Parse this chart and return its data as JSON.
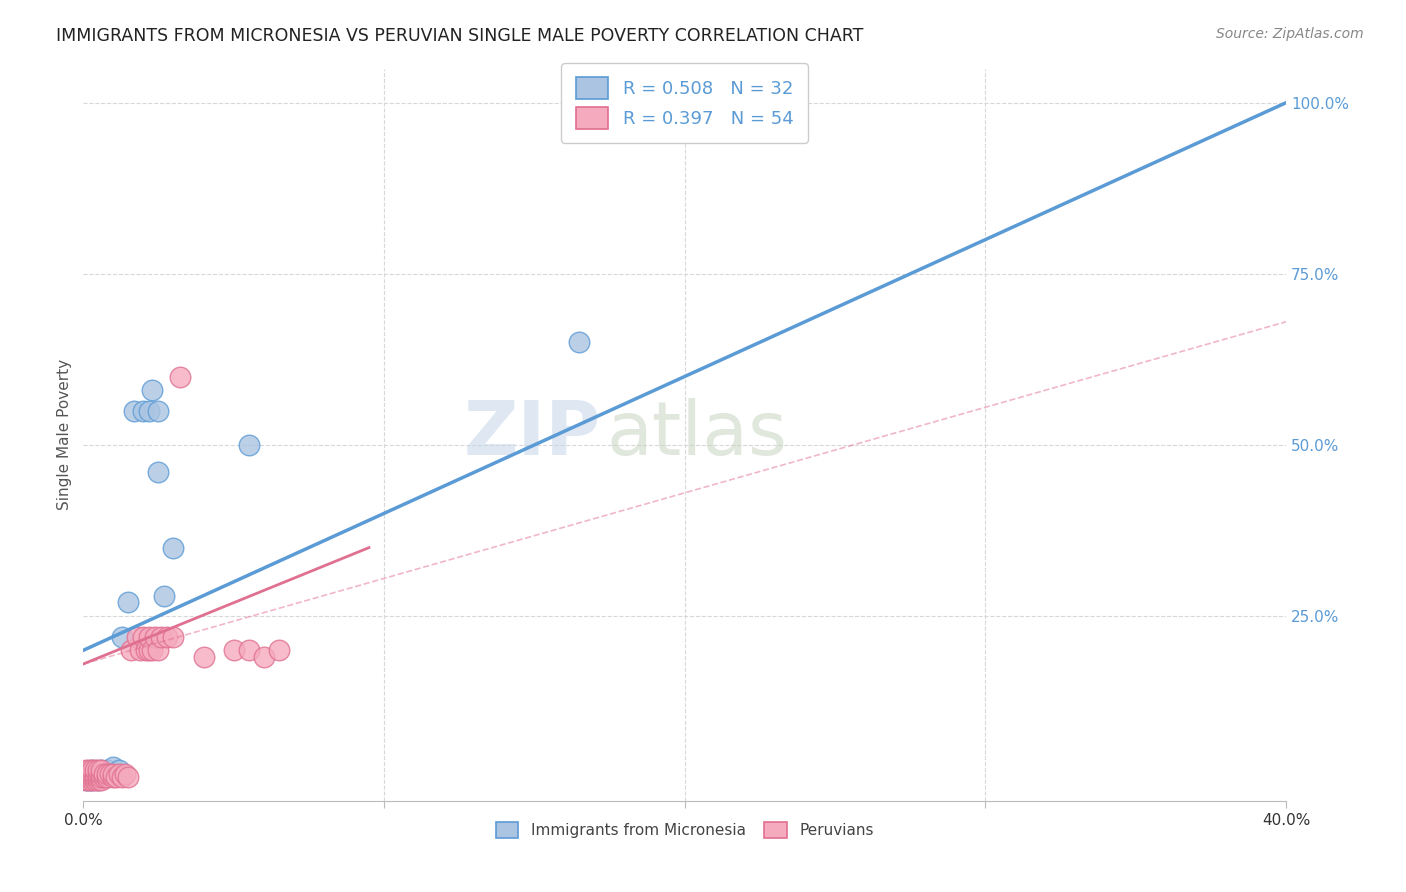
{
  "title": "IMMIGRANTS FROM MICRONESIA VS PERUVIAN SINGLE MALE POVERTY CORRELATION CHART",
  "source": "Source: ZipAtlas.com",
  "ylabel": "Single Male Poverty",
  "ytick_labels": [
    "25.0%",
    "50.0%",
    "75.0%",
    "100.0%"
  ],
  "ytick_values": [
    0.25,
    0.5,
    0.75,
    1.0
  ],
  "xlim": [
    0.0,
    0.4
  ],
  "ylim": [
    -0.02,
    1.05
  ],
  "legend1_text": "R = 0.508   N = 32",
  "legend2_text": "R = 0.397   N = 54",
  "color_blue": "#aac4e2",
  "color_pink": "#f5aabe",
  "line_blue": "#5b9bd5",
  "line_pink": "#e07090",
  "watermark_zip": "ZIP",
  "watermark_atlas": "atlas",
  "micronesia_points": [
    [
      0.001,
      0.01
    ],
    [
      0.001,
      0.02
    ],
    [
      0.002,
      0.01
    ],
    [
      0.002,
      0.015
    ],
    [
      0.002,
      0.02
    ],
    [
      0.003,
      0.01
    ],
    [
      0.003,
      0.02
    ],
    [
      0.003,
      0.025
    ],
    [
      0.004,
      0.015
    ],
    [
      0.004,
      0.02
    ],
    [
      0.005,
      0.01
    ],
    [
      0.005,
      0.02
    ],
    [
      0.006,
      0.015
    ],
    [
      0.006,
      0.025
    ],
    [
      0.007,
      0.02
    ],
    [
      0.008,
      0.015
    ],
    [
      0.008,
      0.025
    ],
    [
      0.009,
      0.02
    ],
    [
      0.01,
      0.03
    ],
    [
      0.012,
      0.025
    ],
    [
      0.013,
      0.22
    ],
    [
      0.015,
      0.27
    ],
    [
      0.017,
      0.55
    ],
    [
      0.02,
      0.55
    ],
    [
      0.022,
      0.55
    ],
    [
      0.023,
      0.58
    ],
    [
      0.025,
      0.46
    ],
    [
      0.025,
      0.55
    ],
    [
      0.027,
      0.28
    ],
    [
      0.03,
      0.35
    ],
    [
      0.055,
      0.5
    ],
    [
      0.165,
      0.65
    ]
  ],
  "peruvian_points": [
    [
      0.001,
      0.01
    ],
    [
      0.001,
      0.02
    ],
    [
      0.001,
      0.025
    ],
    [
      0.002,
      0.01
    ],
    [
      0.002,
      0.015
    ],
    [
      0.002,
      0.02
    ],
    [
      0.002,
      0.025
    ],
    [
      0.003,
      0.01
    ],
    [
      0.003,
      0.015
    ],
    [
      0.003,
      0.02
    ],
    [
      0.003,
      0.025
    ],
    [
      0.004,
      0.01
    ],
    [
      0.004,
      0.015
    ],
    [
      0.004,
      0.02
    ],
    [
      0.004,
      0.025
    ],
    [
      0.005,
      0.01
    ],
    [
      0.005,
      0.015
    ],
    [
      0.005,
      0.02
    ],
    [
      0.005,
      0.025
    ],
    [
      0.006,
      0.01
    ],
    [
      0.006,
      0.015
    ],
    [
      0.006,
      0.02
    ],
    [
      0.006,
      0.025
    ],
    [
      0.007,
      0.015
    ],
    [
      0.007,
      0.02
    ],
    [
      0.008,
      0.015
    ],
    [
      0.008,
      0.02
    ],
    [
      0.009,
      0.02
    ],
    [
      0.01,
      0.015
    ],
    [
      0.01,
      0.02
    ],
    [
      0.011,
      0.015
    ],
    [
      0.012,
      0.02
    ],
    [
      0.013,
      0.015
    ],
    [
      0.014,
      0.02
    ],
    [
      0.015,
      0.015
    ],
    [
      0.016,
      0.2
    ],
    [
      0.018,
      0.22
    ],
    [
      0.019,
      0.2
    ],
    [
      0.02,
      0.22
    ],
    [
      0.021,
      0.2
    ],
    [
      0.022,
      0.2
    ],
    [
      0.022,
      0.22
    ],
    [
      0.023,
      0.2
    ],
    [
      0.024,
      0.22
    ],
    [
      0.025,
      0.2
    ],
    [
      0.026,
      0.22
    ],
    [
      0.028,
      0.22
    ],
    [
      0.03,
      0.22
    ],
    [
      0.032,
      0.6
    ],
    [
      0.04,
      0.19
    ],
    [
      0.05,
      0.2
    ],
    [
      0.055,
      0.2
    ],
    [
      0.06,
      0.19
    ],
    [
      0.065,
      0.2
    ]
  ],
  "micronesia_line": [
    [
      0.0,
      0.2
    ],
    [
      0.4,
      1.0
    ]
  ],
  "peruvian_line_solid": [
    [
      0.0,
      0.18
    ],
    [
      0.095,
      0.35
    ]
  ],
  "peruvian_line_dashed": [
    [
      0.0,
      0.18
    ],
    [
      0.4,
      0.68
    ]
  ],
  "background_color": "#ffffff",
  "grid_color": "#d8d8d8"
}
